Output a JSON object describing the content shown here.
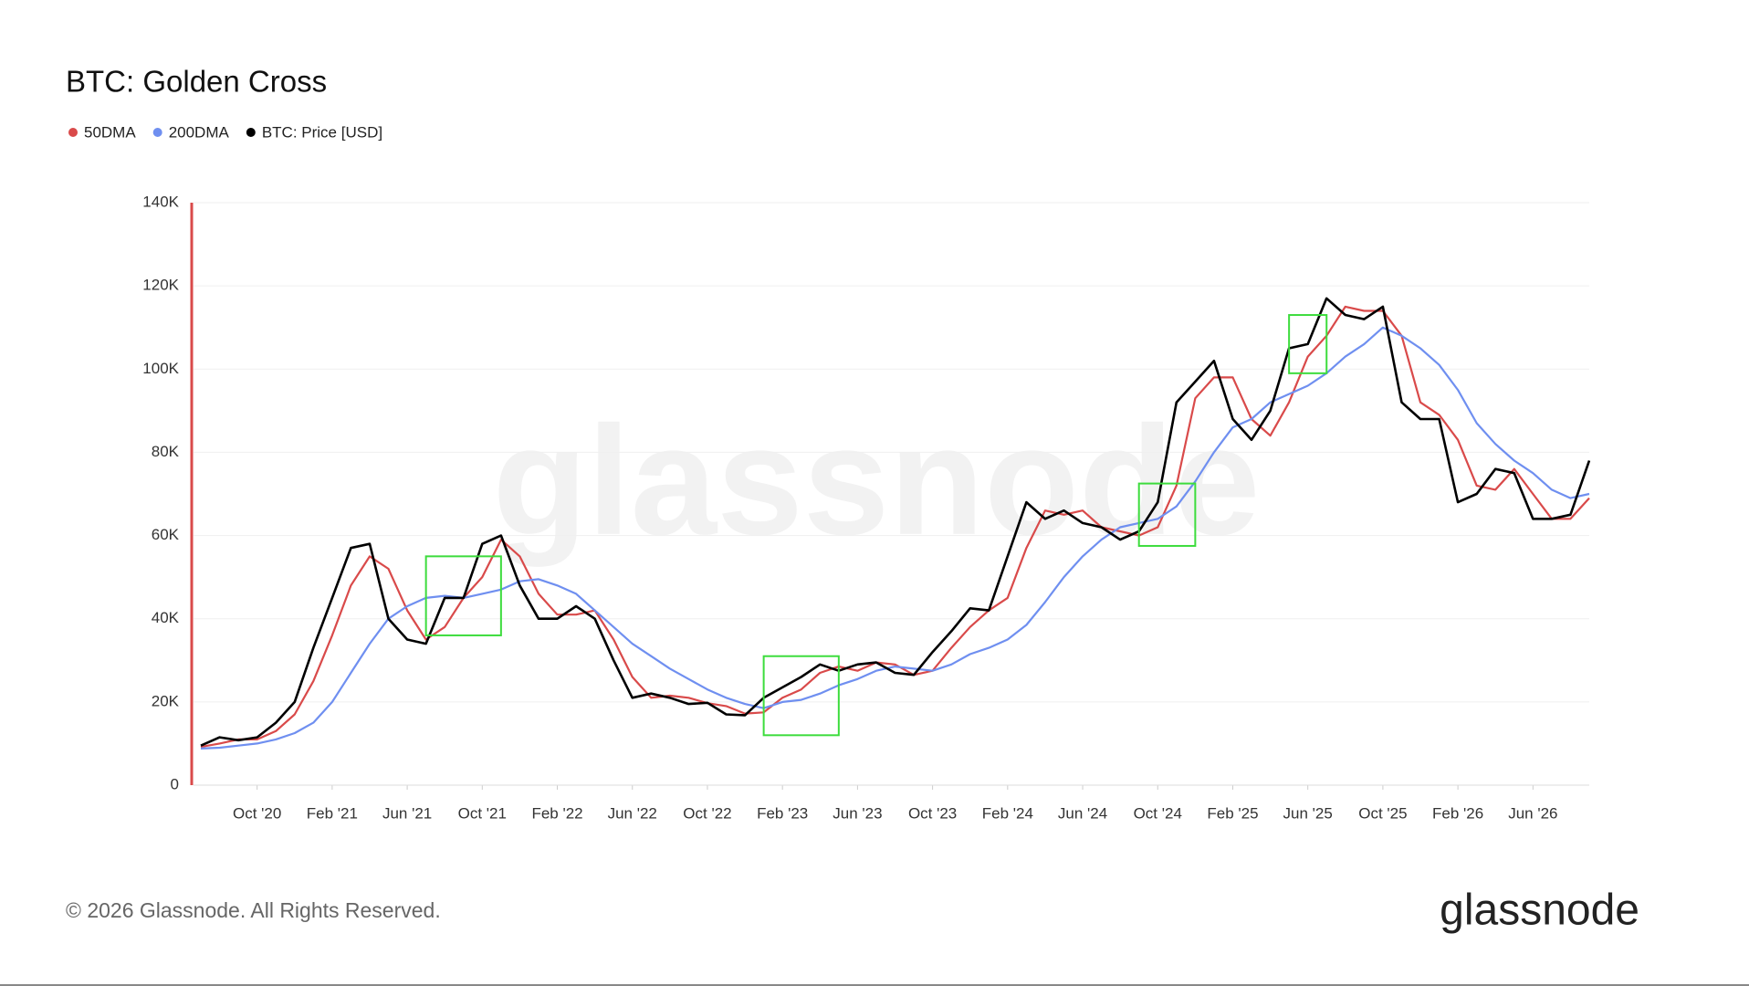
{
  "chart_data": {
    "type": "line",
    "title": "BTC: Golden Cross",
    "watermark": "glassnode",
    "footer": "© 2026 Glassnode. All Rights Reserved.",
    "logo": "glassnode",
    "x": [
      "2020-07",
      "2020-08",
      "2020-09",
      "2020-10",
      "2020-11",
      "2020-12",
      "2021-01",
      "2021-02",
      "2021-03",
      "2021-04",
      "2021-05",
      "2021-06",
      "2021-07",
      "2021-08",
      "2021-09",
      "2021-10",
      "2021-11",
      "2021-12",
      "2022-01",
      "2022-02",
      "2022-03",
      "2022-04",
      "2022-05",
      "2022-06",
      "2022-07",
      "2022-08",
      "2022-09",
      "2022-10",
      "2022-11",
      "2022-12",
      "2023-01",
      "2023-02",
      "2023-03",
      "2023-04",
      "2023-05",
      "2023-06",
      "2023-07",
      "2023-08",
      "2023-09",
      "2023-10",
      "2023-11",
      "2023-12",
      "2024-01",
      "2024-02",
      "2024-03",
      "2024-04",
      "2024-05",
      "2024-06",
      "2024-07",
      "2024-08",
      "2024-09",
      "2024-10",
      "2024-11",
      "2024-12",
      "2025-01",
      "2025-02",
      "2025-03",
      "2025-04",
      "2025-05",
      "2025-06",
      "2025-07",
      "2025-08",
      "2025-09",
      "2025-10",
      "2025-11",
      "2025-12",
      "2026-01",
      "2026-02",
      "2026-03",
      "2026-04",
      "2026-05",
      "2026-06",
      "2026-07",
      "2026-08",
      "2026-09"
    ],
    "xlim": [
      "2020-07",
      "2026-09"
    ],
    "xticks": [
      {
        "value": "2020-10",
        "label": "Oct '20"
      },
      {
        "value": "2021-02",
        "label": "Feb '21"
      },
      {
        "value": "2021-06",
        "label": "Jun '21"
      },
      {
        "value": "2021-10",
        "label": "Oct '21"
      },
      {
        "value": "2022-02",
        "label": "Feb '22"
      },
      {
        "value": "2022-06",
        "label": "Jun '22"
      },
      {
        "value": "2022-10",
        "label": "Oct '22"
      },
      {
        "value": "2023-02",
        "label": "Feb '23"
      },
      {
        "value": "2023-06",
        "label": "Jun '23"
      },
      {
        "value": "2023-10",
        "label": "Oct '23"
      },
      {
        "value": "2024-02",
        "label": "Feb '24"
      },
      {
        "value": "2024-06",
        "label": "Jun '24"
      },
      {
        "value": "2024-10",
        "label": "Oct '24"
      },
      {
        "value": "2025-02",
        "label": "Feb '25"
      },
      {
        "value": "2025-06",
        "label": "Jun '25"
      },
      {
        "value": "2025-10",
        "label": "Oct '25"
      },
      {
        "value": "2026-02",
        "label": "Feb '26"
      },
      {
        "value": "2026-06",
        "label": "Jun '26"
      }
    ],
    "ylim": [
      0,
      140000
    ],
    "yticks": [
      0,
      {
        "value": 20000,
        "label": "20K"
      },
      {
        "value": 40000,
        "label": "40K"
      },
      {
        "value": 60000,
        "label": "60K"
      },
      {
        "value": 80000,
        "label": "80K"
      },
      {
        "value": 100000,
        "label": "100K"
      },
      {
        "value": 120000,
        "label": "120K"
      },
      {
        "value": 140000,
        "label": "140K"
      }
    ],
    "grid": true,
    "series": [
      {
        "name": "50DMA",
        "color": "#d94a4a",
        "values": [
          9200,
          10000,
          11000,
          11000,
          13000,
          17000,
          25000,
          36000,
          48000,
          55000,
          52000,
          42000,
          35000,
          38000,
          45000,
          50000,
          59000,
          55000,
          46000,
          41000,
          41000,
          42000,
          35000,
          26000,
          21000,
          21500,
          21000,
          19700,
          19000,
          17200,
          17500,
          21000,
          23000,
          27000,
          28500,
          27500,
          29500,
          29000,
          26500,
          27500,
          33000,
          38000,
          42000,
          45000,
          57000,
          66000,
          65000,
          66000,
          62000,
          61000,
          60000,
          62000,
          72000,
          93000,
          98000,
          98000,
          88000,
          84000,
          92000,
          103000,
          108000,
          115000,
          114000,
          114000,
          108000,
          92000,
          89000,
          83000,
          72000,
          71000,
          76000,
          70000,
          64000,
          64000,
          69000
        ]
      },
      {
        "name": "200DMA",
        "color": "#6f8ff0",
        "values": [
          8800,
          9000,
          9500,
          10000,
          11000,
          12500,
          15000,
          20000,
          27000,
          34000,
          40000,
          43000,
          45000,
          45500,
          45000,
          46000,
          47000,
          49000,
          49500,
          48000,
          46000,
          42000,
          38000,
          34000,
          31000,
          28000,
          25500,
          23000,
          21000,
          19500,
          18500,
          20000,
          20500,
          22000,
          24000,
          25500,
          27500,
          28500,
          28000,
          27500,
          29000,
          31500,
          33000,
          35000,
          38500,
          44000,
          50000,
          55000,
          59000,
          62000,
          63000,
          64000,
          67000,
          73000,
          80000,
          86000,
          88000,
          92000,
          94000,
          96000,
          99000,
          103000,
          106000,
          110000,
          108000,
          105000,
          101000,
          95000,
          87000,
          82000,
          78000,
          75000,
          71000,
          69000,
          70000
        ]
      },
      {
        "name": "BTC: Price [USD]",
        "color": "#000000",
        "values": [
          9500,
          11500,
          10800,
          11500,
          15000,
          20000,
          33000,
          45000,
          57000,
          58000,
          40000,
          35000,
          34000,
          45000,
          45000,
          58000,
          60000,
          48000,
          40000,
          40000,
          43000,
          40000,
          30000,
          21000,
          22000,
          21000,
          19500,
          19800,
          17000,
          16800,
          21000,
          23500,
          26000,
          29000,
          27500,
          29000,
          29500,
          27000,
          26500,
          32000,
          37000,
          42500,
          42000,
          55000,
          68000,
          64000,
          66000,
          63000,
          62000,
          59000,
          61000,
          68000,
          92000,
          97000,
          102000,
          88000,
          83000,
          90000,
          105000,
          106000,
          117000,
          113000,
          112000,
          115000,
          92000,
          88000,
          88000,
          68000,
          70000,
          76000,
          75000,
          64000,
          64000,
          65000,
          78000
        ]
      }
    ],
    "highlight_color": "#3ddc3d",
    "highlights": [
      {
        "x": [
          "2021-07",
          "2021-11"
        ],
        "y": [
          36000,
          55000
        ]
      },
      {
        "x": [
          "2023-01",
          "2023-05"
        ],
        "y": [
          12000,
          31000
        ]
      },
      {
        "x": [
          "2024-09",
          "2024-12"
        ],
        "y": [
          57500,
          72500
        ]
      },
      {
        "x": [
          "2025-05",
          "2025-07"
        ],
        "y": [
          99000,
          113000
        ]
      }
    ]
  }
}
